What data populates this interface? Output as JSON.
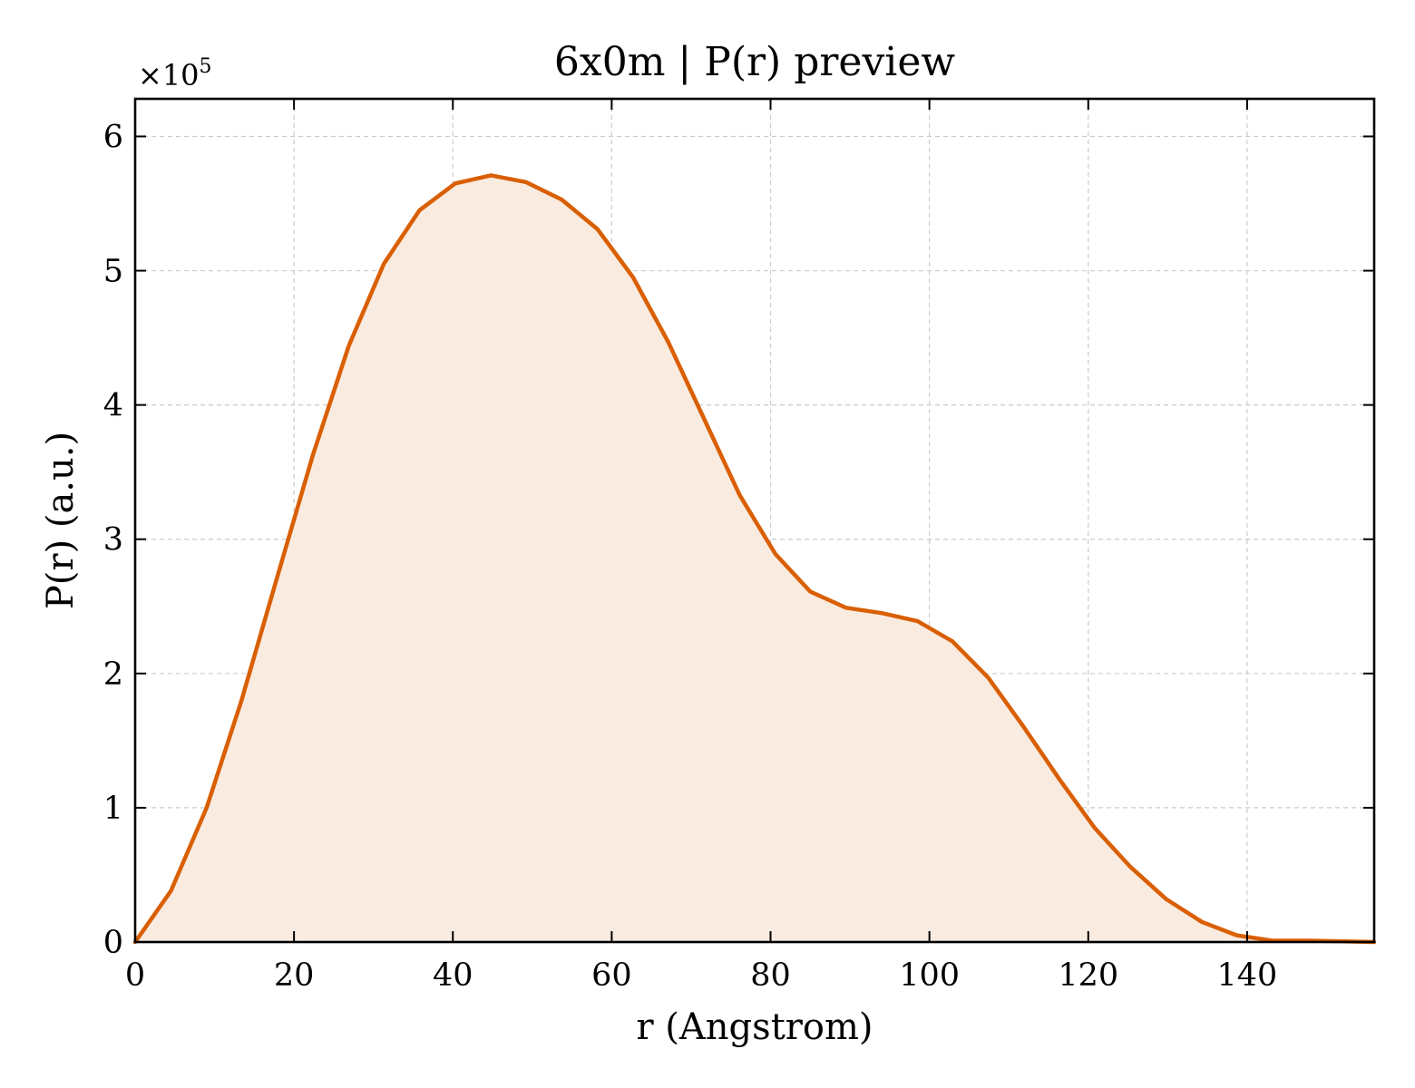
{
  "chart_data": {
    "type": "area",
    "title": "6x0m | P(r) preview",
    "xlabel": "r (Angstrom)",
    "ylabel": "P(r) (a.u.)",
    "y_offset_label": "×10",
    "y_offset_exponent": "5",
    "xlim": [
      0,
      156
    ],
    "ylim": [
      0,
      6.28
    ],
    "x_ticks": [
      0,
      20,
      40,
      60,
      80,
      100,
      120,
      140
    ],
    "y_ticks": [
      0,
      1,
      2,
      3,
      4,
      5,
      6
    ],
    "grid": true,
    "ticks_direction": "in",
    "colors": {
      "line": "#d95f02",
      "fill": "#f9ebe0"
    },
    "series": [
      {
        "x": [
          0,
          4.5,
          9,
          13.4,
          17.9,
          22.4,
          26.9,
          31.3,
          35.8,
          40.3,
          44.8,
          49.2,
          53.7,
          58.2,
          62.7,
          67.1,
          71.6,
          76.1,
          80.6,
          85,
          89.5,
          94,
          98.5,
          102.9,
          107.4,
          111.9,
          116.4,
          120.8,
          125.3,
          129.8,
          134.3,
          138.7,
          143.2,
          147.7,
          152.2,
          156
        ],
        "y": [
          0,
          0.38,
          1.0,
          1.8,
          2.72,
          3.63,
          4.44,
          5.05,
          5.45,
          5.65,
          5.71,
          5.66,
          5.53,
          5.31,
          4.95,
          4.47,
          3.9,
          3.33,
          2.89,
          2.61,
          2.49,
          2.45,
          2.39,
          2.24,
          1.97,
          1.6,
          1.21,
          0.85,
          0.56,
          0.32,
          0.15,
          0.05,
          0.01,
          0.01,
          0.005,
          0
        ]
      }
    ]
  }
}
